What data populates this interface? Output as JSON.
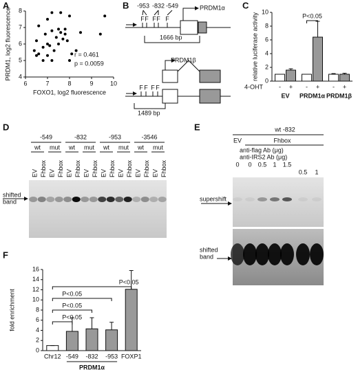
{
  "panel_labels": [
    "A",
    "B",
    "C",
    "D",
    "E",
    "F"
  ],
  "chart_data": [
    {
      "type": "scatter",
      "xlabel": "FOXO1, log2 fluorescence",
      "ylabel": "PRDM1, log2 fluorescence",
      "x": [
        6.6,
        6.5,
        6.4,
        6.5,
        6.9,
        7.0,
        7.2,
        7.2,
        7.0,
        7.1,
        6.8,
        6.6,
        7.0,
        7.2,
        7.3,
        7.4,
        7.6,
        7.5,
        7.7,
        7.8,
        8.0,
        7.9,
        8.1,
        8.0,
        7.5,
        8.3,
        8.5,
        9.4,
        9.6,
        6.8,
        7.6,
        7.8
      ],
      "values": [
        7.1,
        6.2,
        5.6,
        5.3,
        6.6,
        7.5,
        7.9,
        6.8,
        6.0,
        5.9,
        5.8,
        5.4,
        5.3,
        5.0,
        5.6,
        6.4,
        7.9,
        6.9,
        6.3,
        6.6,
        7.7,
        6.2,
        5.4,
        5.0,
        6.0,
        5.6,
        6.7,
        6.6,
        7.7,
        5.0,
        6.7,
        6.9
      ],
      "color": "#000000",
      "xlim": [
        6,
        10
      ],
      "xticks": [
        6,
        7,
        8,
        9,
        10
      ],
      "ylim": [
        4,
        8
      ],
      "yticks": [
        4,
        5,
        6,
        7,
        8
      ],
      "annotations": [
        "r = 0.461",
        "p = 0.0059"
      ]
    },
    {
      "type": "bar",
      "ylabel": "relative luciferase activity",
      "row_label": "4-OHT",
      "categories": [
        "EV",
        "PRDM1α",
        "PRDM1β"
      ],
      "series": [
        {
          "name": "-",
          "color": "#ffffff",
          "values": [
            1,
            1,
            1
          ],
          "errors": [
            0,
            0,
            0.1
          ]
        },
        {
          "name": "+",
          "color": "#999999",
          "values": [
            1.6,
            6.4,
            1.0
          ],
          "errors": [
            0.2,
            2.3,
            0.15
          ]
        }
      ],
      "ylim": [
        0,
        10
      ],
      "yticks": [
        0,
        2,
        4,
        6,
        8,
        10
      ],
      "annotations": [
        "P<0.05"
      ]
    },
    {
      "type": "bar",
      "ylabel": "fold enrichment",
      "group_label": "PRDM1α",
      "categories": [
        "Chr12",
        "-549",
        "-832",
        "-953",
        "FOXP1"
      ],
      "values": [
        1,
        3.8,
        4.3,
        4.1,
        12.1
      ],
      "errors": [
        0,
        2.7,
        2.2,
        1.5,
        3.7
      ],
      "colors": [
        "#ffffff",
        "#999999",
        "#999999",
        "#999999",
        "#999999"
      ],
      "ylim": [
        0,
        16
      ],
      "yticks": [
        0,
        2,
        4,
        6,
        8,
        10,
        12,
        14,
        16
      ],
      "annotations": [
        "P<0.05",
        "P<0.05",
        "P<0.05",
        "P<0.05"
      ]
    }
  ],
  "panel_b": {
    "sites": [
      "-953",
      "-832",
      "-549"
    ],
    "gene_a": "PRDM1α",
    "length_a": "1666 bp",
    "gene_b": "PRDM1β",
    "length_b": "1489 bp",
    "f_top": [
      "F",
      "F",
      "F",
      "F",
      "F"
    ],
    "f_bottom": [
      "F",
      "F",
      "F",
      "F"
    ]
  },
  "panel_d": {
    "groups": [
      "-549",
      "-832",
      "-953",
      "-3546"
    ],
    "subgroups": [
      "wt",
      "mut"
    ],
    "lanes": [
      "EV",
      "Fhbox"
    ],
    "band_label": [
      "shifted",
      "band"
    ]
  },
  "panel_e": {
    "header": "wt -832",
    "conditions": [
      "EV",
      "Fhbox"
    ],
    "rows": [
      "anti-flag Ab (μg)",
      "anti-IRS2 Ab (μg)"
    ],
    "flag_amounts": [
      "0",
      "0",
      "0.5",
      "1",
      "1.5"
    ],
    "irs2_amounts": [
      "0.5",
      "1"
    ],
    "supershift_label": "supershift",
    "band_label": [
      "shifted",
      "band"
    ]
  }
}
